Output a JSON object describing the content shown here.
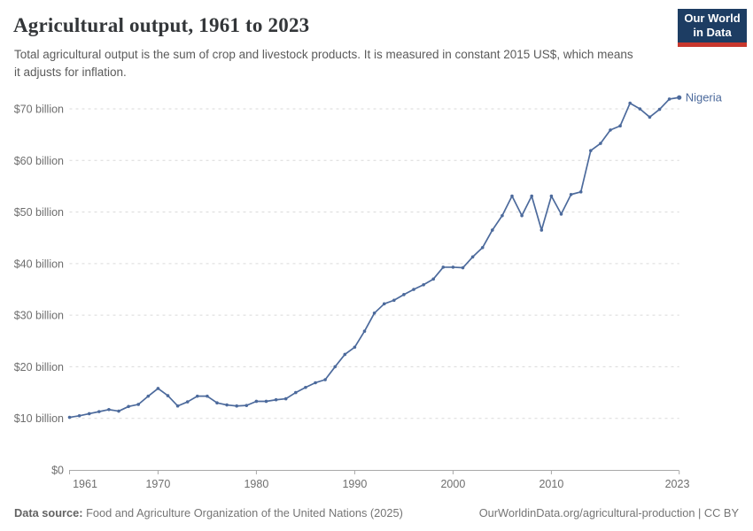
{
  "header": {
    "title": "Agricultural output, 1961 to 2023",
    "subtitle": "Total agricultural output is the sum of crop and livestock products. It is measured in constant 2015 US$, which means it adjusts for inflation.",
    "logo": {
      "line1": "Our World",
      "line2": "in Data"
    }
  },
  "chart_data": {
    "type": "line",
    "title": "Agricultural output, 1961 to 2023",
    "ylabel": "",
    "xlabel": "",
    "grid": "horizontal-dashed",
    "legend_position": "end-of-line",
    "xlim": [
      1961,
      2023
    ],
    "ylim": [
      0,
      73
    ],
    "x_ticks": [
      1961,
      1970,
      1980,
      1990,
      2000,
      2010,
      2023
    ],
    "y_ticks": [
      0,
      10,
      20,
      30,
      40,
      50,
      60,
      70
    ],
    "y_tick_labels": [
      "$0",
      "$10 billion",
      "$20 billion",
      "$30 billion",
      "$40 billion",
      "$50 billion",
      "$60 billion",
      "$70 billion"
    ],
    "unit": "billion constant 2015 US$",
    "series": [
      {
        "name": "Nigeria",
        "color": "#4C6A9C",
        "x": [
          1961,
          1962,
          1963,
          1964,
          1965,
          1966,
          1967,
          1968,
          1969,
          1970,
          1971,
          1972,
          1973,
          1974,
          1975,
          1976,
          1977,
          1978,
          1979,
          1980,
          1981,
          1982,
          1983,
          1984,
          1985,
          1986,
          1987,
          1988,
          1989,
          1990,
          1991,
          1992,
          1993,
          1994,
          1995,
          1996,
          1997,
          1998,
          1999,
          2000,
          2001,
          2002,
          2003,
          2004,
          2005,
          2006,
          2007,
          2008,
          2009,
          2010,
          2011,
          2012,
          2013,
          2014,
          2015,
          2016,
          2017,
          2018,
          2019,
          2020,
          2021,
          2022,
          2023
        ],
        "values": [
          10.2,
          10.5,
          10.9,
          11.3,
          11.7,
          11.4,
          12.3,
          12.7,
          14.3,
          15.8,
          14.4,
          12.4,
          13.2,
          14.3,
          14.3,
          13.0,
          12.6,
          12.4,
          12.5,
          13.3,
          13.3,
          13.6,
          13.8,
          15.0,
          16.0,
          16.9,
          17.5,
          20.0,
          22.4,
          23.8,
          26.9,
          30.4,
          32.2,
          32.9,
          34.0,
          35.0,
          35.9,
          37.0,
          39.3,
          39.3,
          39.2,
          41.3,
          43.1,
          46.5,
          49.3,
          53.1,
          49.3,
          53.1,
          46.5,
          53.1,
          49.6,
          53.4,
          53.9,
          61.9,
          63.3,
          65.9,
          66.7,
          71.1,
          70.0,
          68.4,
          69.9,
          71.9,
          72.2
        ]
      }
    ]
  },
  "footer": {
    "source_label": "Data source:",
    "source_text": " Food and Agriculture Organization of the United Nations (2025)",
    "link_text": "OurWorldinData.org/agricultural-production | CC BY"
  },
  "colors": {
    "series_blue": "#4C6A9C",
    "logo_navy": "#1D3D63",
    "logo_red": "#C8372D",
    "gridline": "#dadada",
    "axis_line": "#a8a8a8",
    "tick_text": "#6e6e6e"
  }
}
